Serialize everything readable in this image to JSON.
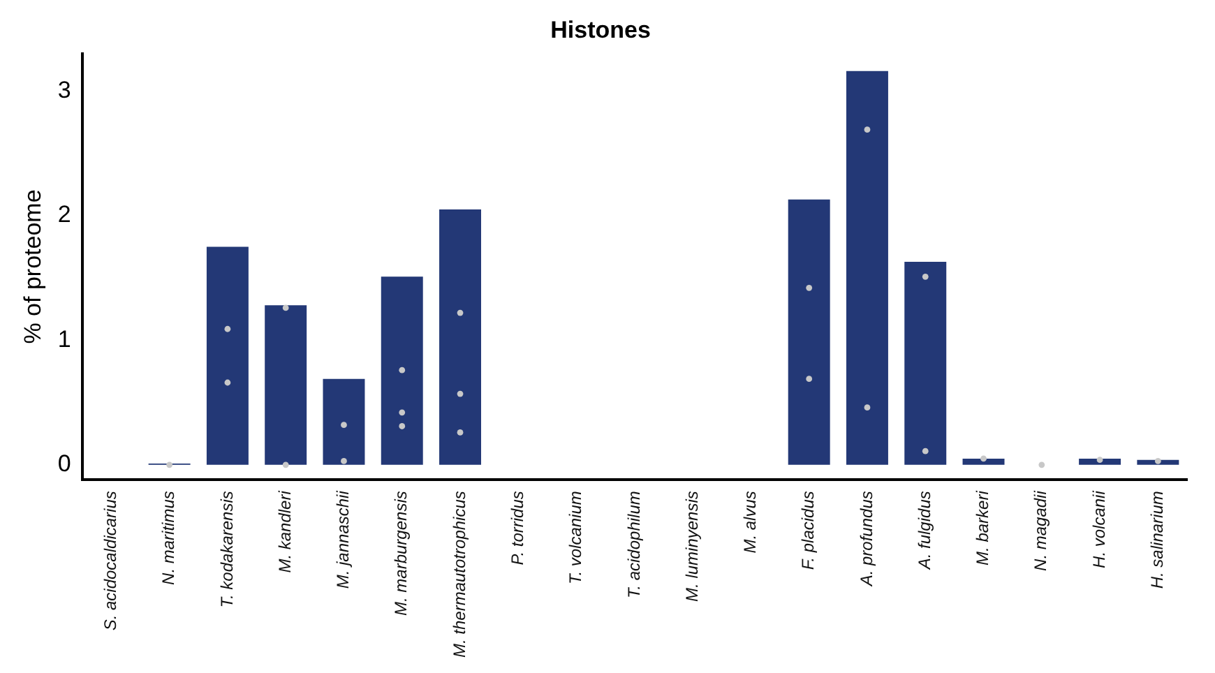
{
  "chart_data": {
    "type": "bar",
    "title": "Histones",
    "ylabel": "% of proteome",
    "categories": [
      "S. acidocaldicarius",
      "N. maritimus",
      "T. kodakarensis",
      "M. kandleri",
      "M. jannaschii",
      "M. marburgensis",
      "M. thermautotrophicus",
      "P. torridus",
      "T. volcanium",
      "T. acidophilum",
      "M. luminyensis",
      "M. alvus",
      "F. placidus",
      "A. profundus",
      "A. fulgidus",
      "M. barkeri",
      "N. magadii",
      "H. volcanii",
      "H. salinarium"
    ],
    "series": [
      {
        "color": "#233876",
        "values": [
          0,
          0.01,
          1.75,
          1.28,
          0.69,
          1.51,
          2.05,
          0,
          0,
          0,
          0,
          0,
          2.13,
          3.16,
          1.63,
          0.05,
          0,
          0.05,
          0.04
        ]
      },
      {
        "type": "scatter",
        "color": "#c8c8c8",
        "x": [
          "N. maritimus",
          "T. kodakarensis",
          "T. kodakarensis",
          "M. kandleri",
          "M. kandleri",
          "M. jannaschii",
          "M. jannaschii",
          "M. marburgensis",
          "M. marburgensis",
          "M. marburgensis",
          "M. thermautotrophicus",
          "M. thermautotrophicus",
          "M. thermautotrophicus",
          "F. placidus",
          "F. placidus",
          "A. profundus",
          "A. profundus",
          "A. fulgidus",
          "A. fulgidus",
          "M. barkeri",
          "N. magadii",
          "H. volcanii",
          "H. salinarium"
        ],
        "values": [
          0,
          1.09,
          0.66,
          1.26,
          0,
          0.32,
          0.03,
          0.76,
          0.42,
          0.31,
          1.22,
          0.57,
          0.26,
          1.42,
          0.69,
          2.69,
          0.46,
          1.51,
          0.11,
          0.05,
          0,
          0.04,
          0.03
        ]
      }
    ],
    "ylim": [
      -0.12,
      3.3
    ],
    "yticks": [
      0,
      1,
      2,
      3
    ],
    "grid": false,
    "legend": false,
    "marker": "circle"
  }
}
